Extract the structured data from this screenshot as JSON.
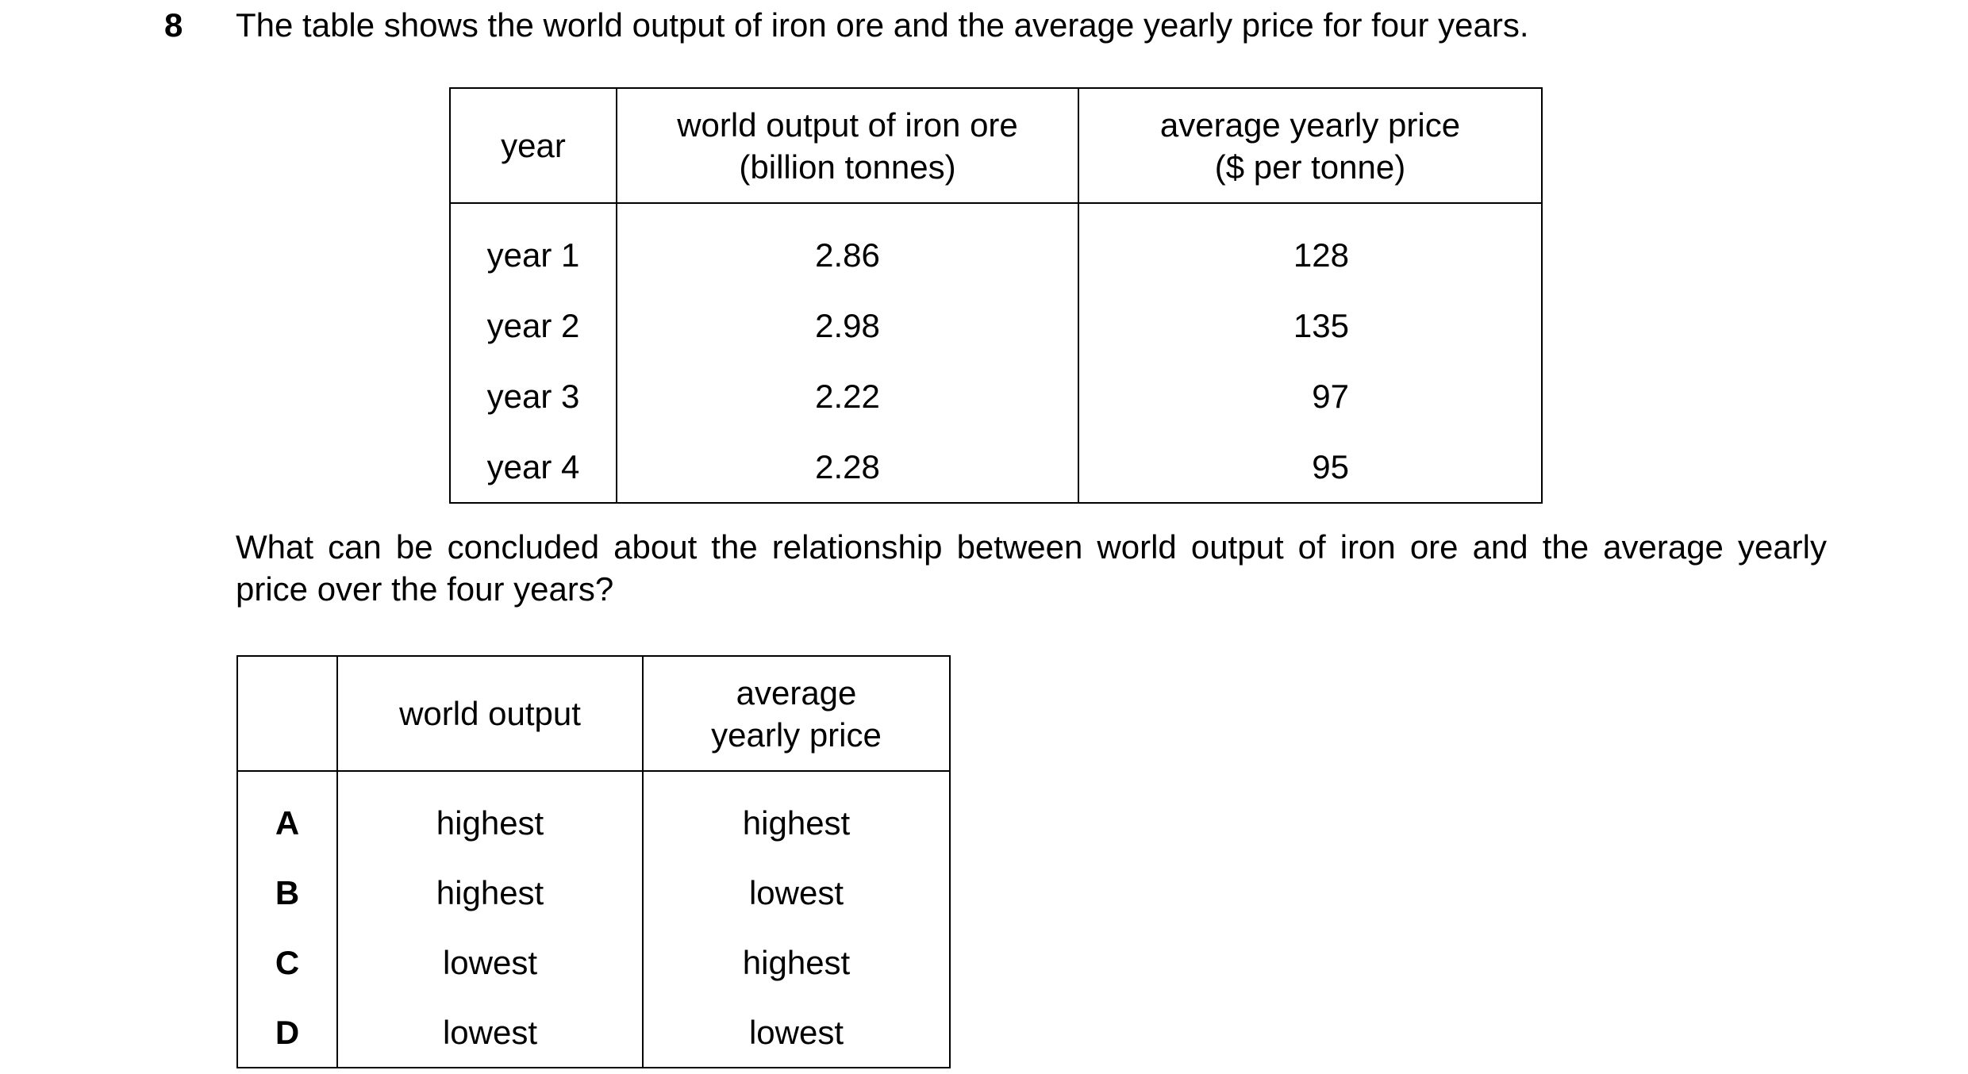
{
  "question_number": "8",
  "stem": "The table shows the world output of iron ore and the average yearly price for four years.",
  "data_table": {
    "headers": {
      "year": "year",
      "output_line1": "world output of iron ore",
      "output_line2": "(billion tonnes)",
      "price_line1": "average yearly price",
      "price_line2": "($ per tonne)"
    },
    "rows": [
      {
        "year": "year 1",
        "output": "2.86",
        "price": "128"
      },
      {
        "year": "year 2",
        "output": "2.98",
        "price": "135"
      },
      {
        "year": "year 3",
        "output": "2.22",
        "price": "97"
      },
      {
        "year": "year 4",
        "output": "2.28",
        "price": "95"
      }
    ]
  },
  "question": "What can be concluded about the relationship between world output of iron ore and the average yearly price over the four years?",
  "answer_table": {
    "headers": {
      "output": "world output",
      "price_line1": "average",
      "price_line2": "yearly price"
    },
    "options": [
      {
        "letter": "A",
        "output": "highest",
        "price": "highest"
      },
      {
        "letter": "B",
        "output": "highest",
        "price": "lowest"
      },
      {
        "letter": "C",
        "output": "lowest",
        "price": "highest"
      },
      {
        "letter": "D",
        "output": "lowest",
        "price": "lowest"
      }
    ]
  }
}
